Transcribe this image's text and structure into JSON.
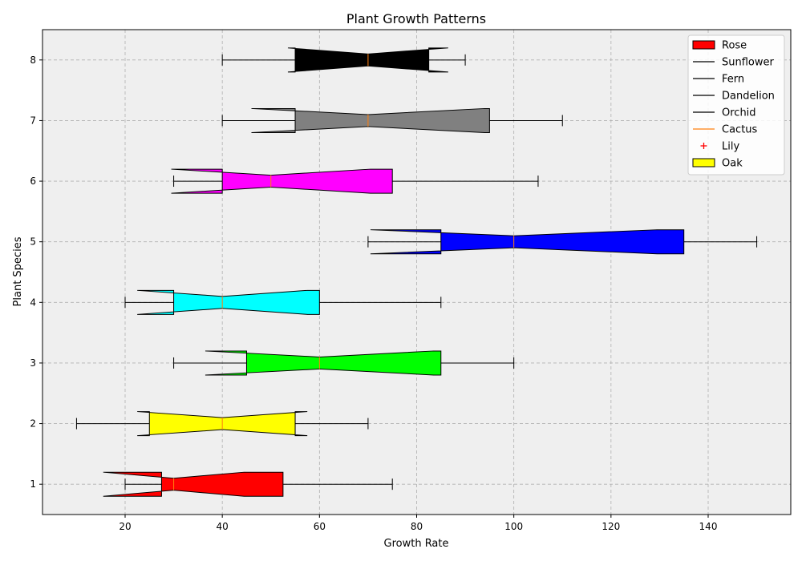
{
  "chart_data": {
    "type": "boxplot",
    "orientation": "horizontal",
    "notched": true,
    "title": "Plant Growth Patterns",
    "xlabel": "Growth Rate",
    "ylabel": "Plant Species",
    "xlim": [
      3,
      157
    ],
    "ylim": [
      0.5,
      8.5
    ],
    "xticks": [
      20,
      40,
      60,
      80,
      100,
      120,
      140
    ],
    "yticks": [
      1,
      2,
      3,
      4,
      5,
      6,
      7,
      8
    ],
    "grid": true,
    "grid_style": "dashed",
    "plot_background": "#efefef",
    "legend_position": "top-right",
    "legend": [
      {
        "label": "Rose",
        "kind": "patch",
        "color": "#ff0000"
      },
      {
        "label": "Sunflower",
        "kind": "line",
        "color": "#000000"
      },
      {
        "label": "Fern",
        "kind": "line",
        "color": "#000000"
      },
      {
        "label": "Dandelion",
        "kind": "line",
        "color": "#000000"
      },
      {
        "label": "Orchid",
        "kind": "line",
        "color": "#000000"
      },
      {
        "label": "Cactus",
        "kind": "line",
        "color": "#ff7f0e"
      },
      {
        "label": "Lily",
        "kind": "marker",
        "color": "#ff0000"
      },
      {
        "label": "Oak",
        "kind": "patch",
        "color": "#ffff00"
      }
    ],
    "boxes": [
      {
        "position": 1,
        "color": "#ff0000",
        "whisker_low": 20,
        "q1": 27.5,
        "median": 30,
        "q3": 52.5,
        "whisker_high": 75,
        "notch_low": 15.5,
        "notch_high": 44.5
      },
      {
        "position": 2,
        "color": "#ffff00",
        "whisker_low": 10,
        "q1": 25,
        "median": 40,
        "q3": 55,
        "whisker_high": 70,
        "notch_low": 22.5,
        "notch_high": 57.5
      },
      {
        "position": 3,
        "color": "#00ff00",
        "whisker_low": 30,
        "q1": 45,
        "median": 60,
        "q3": 85,
        "whisker_high": 100,
        "notch_low": 36.5,
        "notch_high": 83.5
      },
      {
        "position": 4,
        "color": "#00ffff",
        "whisker_low": 20,
        "q1": 30,
        "median": 40,
        "q3": 60,
        "whisker_high": 85,
        "notch_low": 22.5,
        "notch_high": 57.5
      },
      {
        "position": 5,
        "color": "#0000ff",
        "whisker_low": 70,
        "q1": 85,
        "median": 100,
        "q3": 135,
        "whisker_high": 150,
        "notch_low": 70.5,
        "notch_high": 129.5
      },
      {
        "position": 6,
        "color": "#ff00ff",
        "whisker_low": 30,
        "q1": 40,
        "median": 50,
        "q3": 75,
        "whisker_high": 105,
        "notch_low": 29.5,
        "notch_high": 70.5
      },
      {
        "position": 7,
        "color": "#808080",
        "whisker_low": 40,
        "q1": 55,
        "median": 70,
        "q3": 95,
        "whisker_high": 110,
        "notch_low": 46,
        "notch_high": 94
      },
      {
        "position": 8,
        "color": "#000000",
        "whisker_low": 40,
        "q1": 55,
        "median": 70,
        "q3": 82.5,
        "whisker_high": 90,
        "notch_low": 53.5,
        "notch_high": 86.5
      }
    ]
  }
}
